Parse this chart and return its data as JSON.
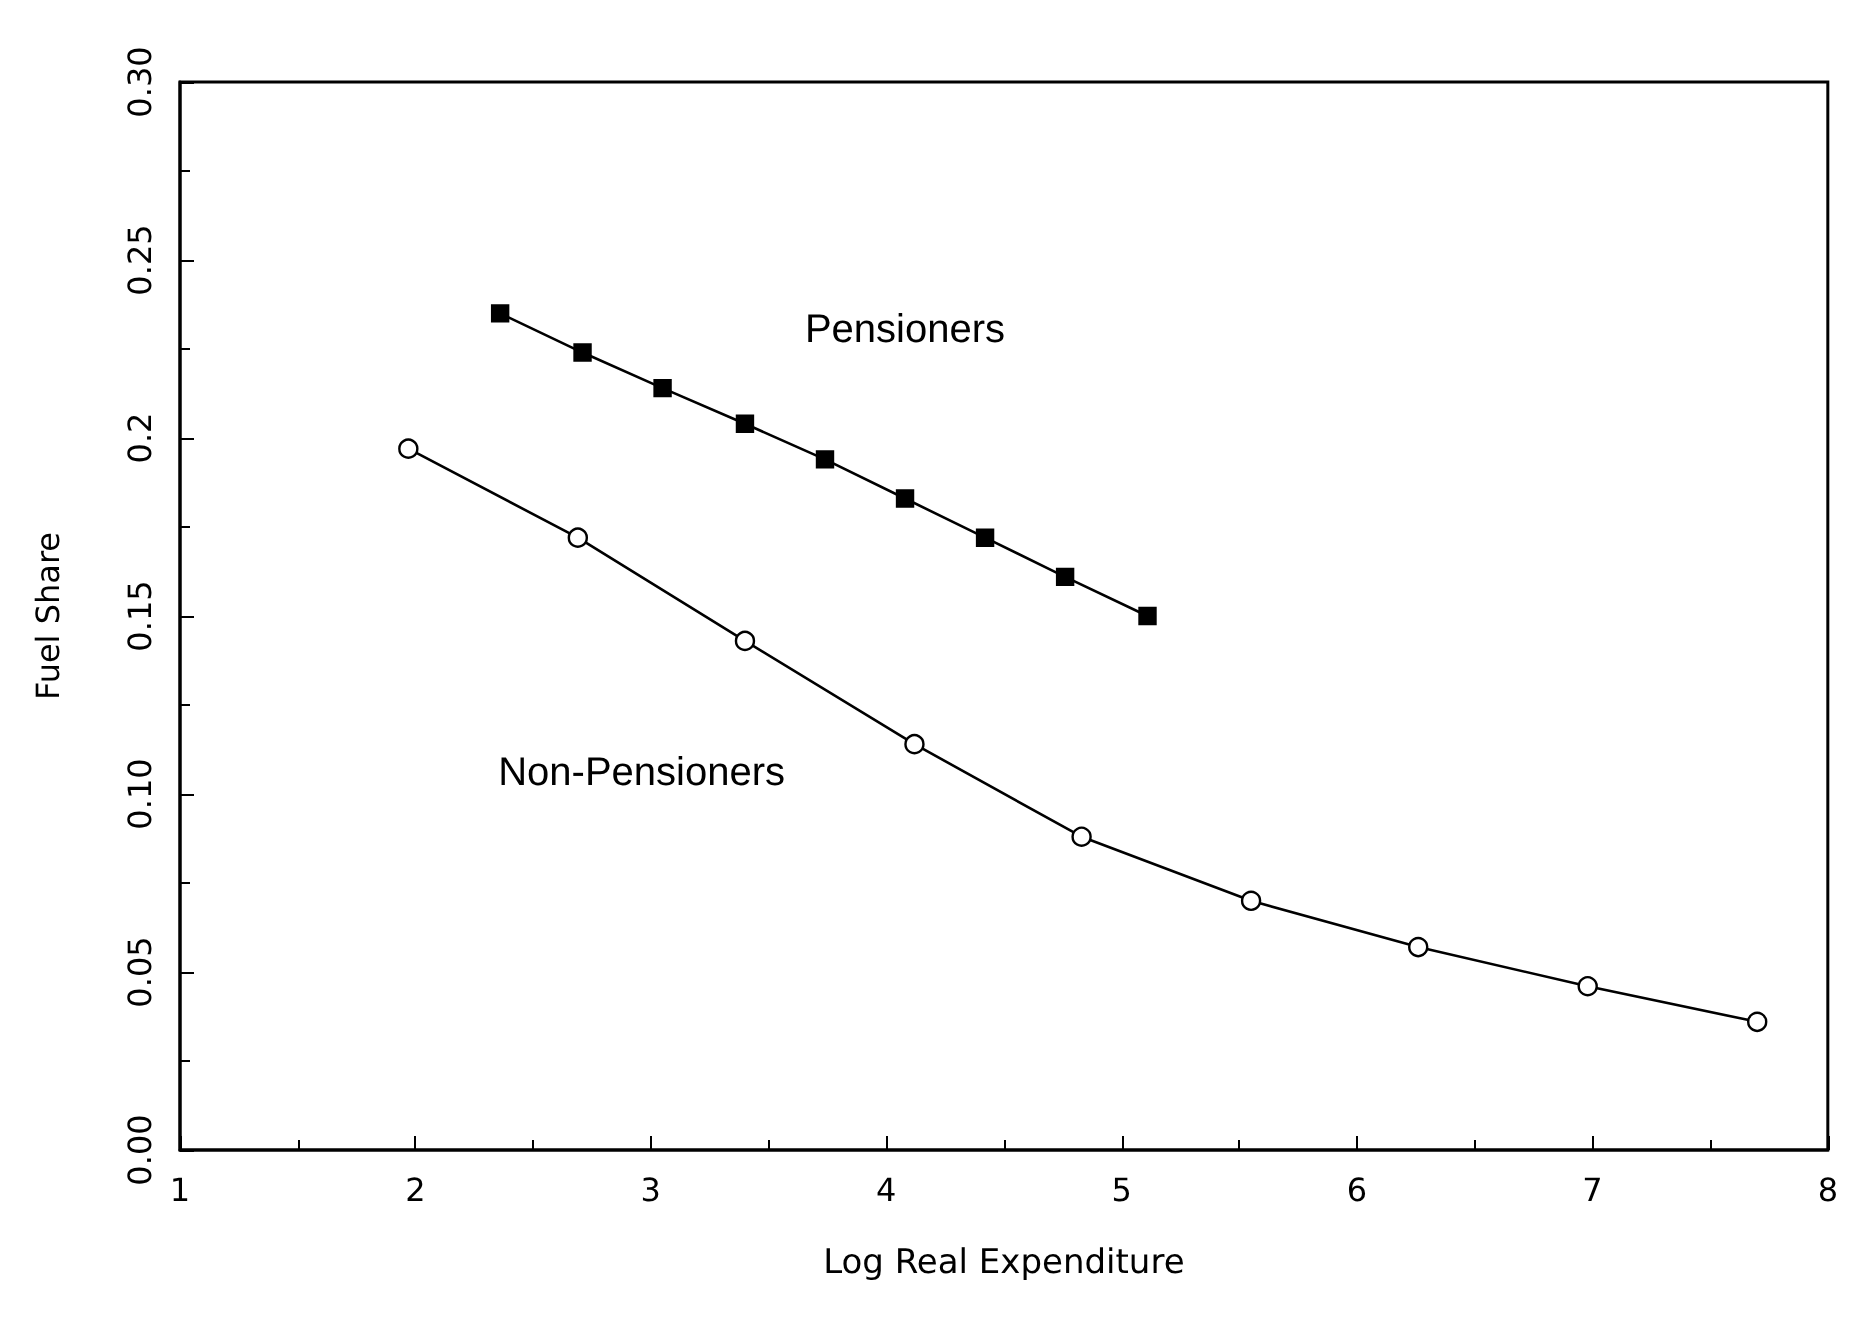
{
  "chart_data": {
    "type": "line",
    "xlabel": "Log Real Expenditure",
    "ylabel": "Fuel Share",
    "xlim": [
      1,
      8
    ],
    "xticks": [
      1,
      2,
      3,
      4,
      5,
      6,
      7,
      8
    ],
    "ylim": [
      0,
      0.3
    ],
    "yticks": [
      {
        "value": 0,
        "label": "0.00"
      },
      {
        "value": 0.05,
        "label": "0.05"
      },
      {
        "value": 0.1,
        "label": "0.10"
      },
      {
        "value": 0.15,
        "label": "0.15"
      },
      {
        "value": 0.2,
        "label": "0.2"
      },
      {
        "value": 0.25,
        "label": "0.25"
      },
      {
        "value": 0.3,
        "label": "0.30"
      }
    ],
    "grid": false,
    "legend": false,
    "series": [
      {
        "name": "Pensioners",
        "color": "#000000",
        "marker": "square",
        "x": [
          2.36,
          2.71,
          3.05,
          3.4,
          3.74,
          4.08,
          4.42,
          4.76,
          5.11
        ],
        "values": [
          0.235,
          0.224,
          0.214,
          0.204,
          0.194,
          0.183,
          0.172,
          0.161,
          0.15
        ]
      },
      {
        "name": "Non-Pensioners",
        "color": "#000000",
        "marker": "circle",
        "x": [
          1.97,
          2.69,
          3.4,
          4.12,
          4.83,
          5.55,
          6.26,
          6.98,
          7.7
        ],
        "values": [
          0.197,
          0.172,
          0.143,
          0.114,
          0.088,
          0.07,
          0.057,
          0.046,
          0.036
        ]
      }
    ]
  }
}
